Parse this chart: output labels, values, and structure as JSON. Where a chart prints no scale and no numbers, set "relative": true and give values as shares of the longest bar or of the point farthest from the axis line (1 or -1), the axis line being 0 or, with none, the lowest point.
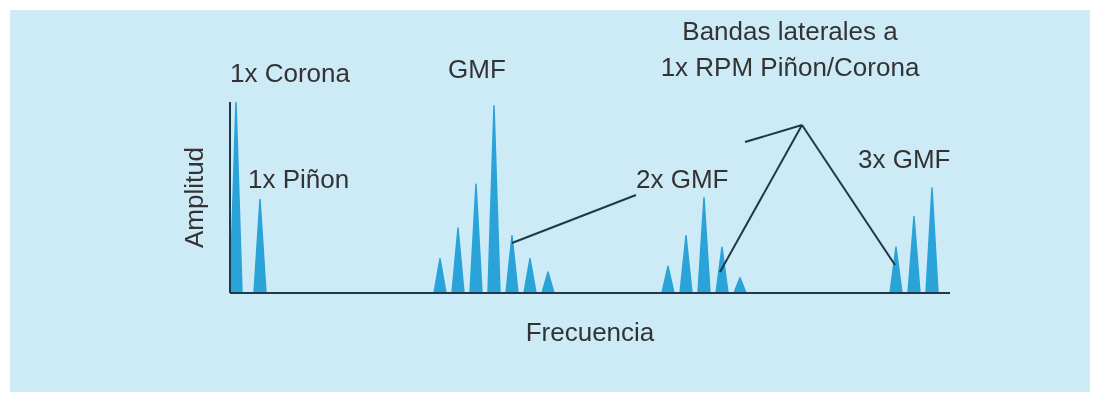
{
  "chart_data": {
    "type": "area",
    "relative": true,
    "xlabel": "Frecuencia",
    "ylabel": "Amplitud",
    "categories": [
      null,
      null,
      null,
      null,
      null,
      null,
      null,
      null,
      null,
      null,
      null,
      null,
      null,
      null,
      null,
      null,
      null,
      null,
      null,
      null,
      null,
      null,
      null,
      null,
      null,
      null,
      null,
      null,
      null,
      null,
      null,
      null,
      null,
      null,
      null,
      null,
      null,
      null,
      null,
      null,
      null,
      null,
      null,
      null,
      null,
      null,
      null,
      null,
      null,
      null,
      null,
      null,
      null,
      null,
      null,
      null,
      null,
      null,
      null,
      null,
      null,
      null,
      null,
      null,
      null,
      null,
      null,
      null,
      null,
      null,
      null,
      null,
      null,
      null,
      null,
      null,
      null,
      null,
      null,
      null,
      null,
      null,
      null,
      null,
      null,
      null,
      null,
      null,
      null,
      null,
      null,
      null,
      null,
      null,
      null,
      null,
      null,
      null,
      null,
      null,
      null,
      null,
      null,
      null,
      null,
      null,
      null,
      null,
      null,
      null,
      null,
      null,
      null,
      null,
      null,
      null,
      null,
      null,
      null,
      null,
      null
    ],
    "values": [
      0,
      1,
      0,
      0,
      0,
      0.49,
      0,
      0,
      0,
      0,
      0,
      0,
      0,
      0,
      0,
      0,
      0,
      0,
      0,
      0,
      0,
      0,
      0,
      0,
      0,
      0,
      0,
      0,
      0,
      0,
      0,
      0,
      0,
      0,
      0,
      0.18,
      0,
      0,
      0.34,
      0,
      0,
      0.57,
      0,
      0,
      0.98,
      0,
      0,
      0.3,
      0,
      0,
      0.18,
      0,
      0,
      0.11,
      0,
      0,
      0,
      0,
      0,
      0,
      0,
      0,
      0,
      0,
      0,
      0,
      0,
      0,
      0,
      0,
      0,
      0,
      0,
      0.14,
      0,
      0,
      0.3,
      0,
      0,
      0.5,
      0,
      0,
      0.24,
      0,
      0,
      0.08,
      0,
      0,
      0,
      0,
      0,
      0,
      0,
      0,
      0,
      0,
      0,
      0,
      0,
      0,
      0,
      0,
      0,
      0,
      0,
      0,
      0,
      0,
      0,
      0,
      0,
      0.24,
      0,
      0,
      0.4,
      0,
      0,
      0.55,
      0,
      0,
      0
    ],
    "color": "#2aa3d9",
    "annotations": [
      "1x Corona",
      "1x Piñon",
      "GMF",
      "2x GMF",
      "3x GMF",
      "Bandas laterales a\n1x RPM Piñon/Corona"
    ]
  }
}
